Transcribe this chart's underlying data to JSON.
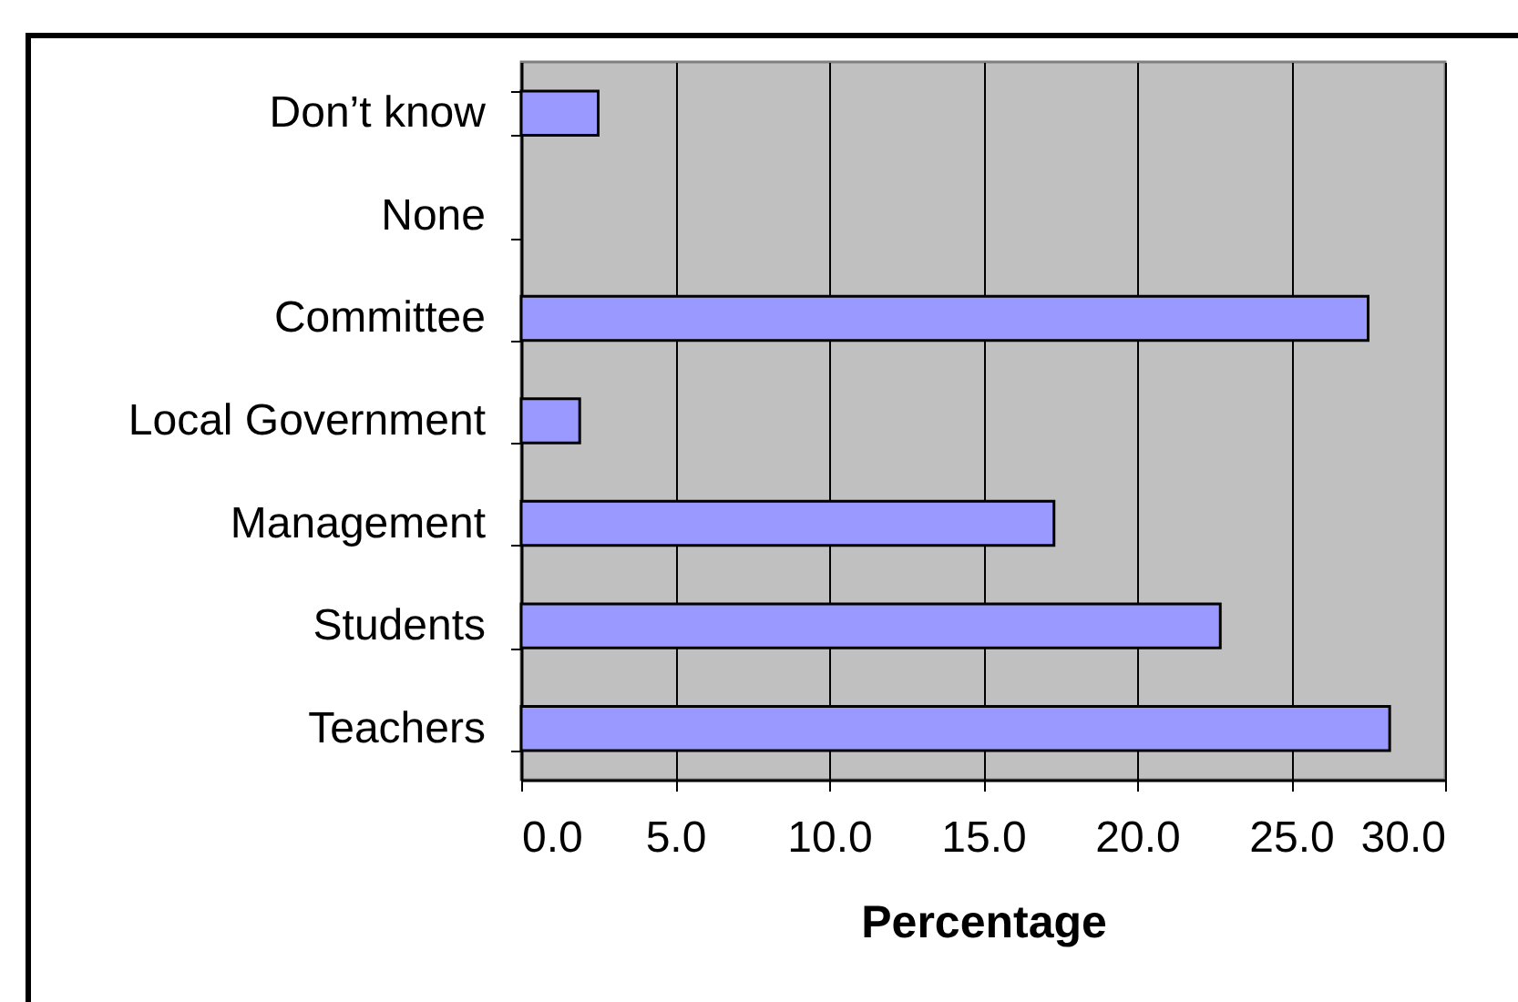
{
  "chart_data": {
    "type": "bar",
    "orientation": "horizontal",
    "xlabel": "Percentage",
    "categories": [
      "Don’t know",
      "None",
      "Committee",
      "Local Government",
      "Management",
      "Students",
      "Teachers"
    ],
    "values": [
      2.5,
      null,
      27.5,
      1.9,
      17.3,
      22.7,
      28.2
    ],
    "color": "#9999ff",
    "xlim": [
      0,
      30
    ],
    "xticks": [
      {
        "value": 0,
        "label": "0.0"
      },
      {
        "value": 5,
        "label": "5.0"
      },
      {
        "value": 10,
        "label": "10.0"
      },
      {
        "value": 15,
        "label": "15.0"
      },
      {
        "value": 20,
        "label": "20.0"
      },
      {
        "value": 25,
        "label": "25.0"
      },
      {
        "value": 30,
        "label": "30.0"
      }
    ],
    "grid": "x"
  }
}
